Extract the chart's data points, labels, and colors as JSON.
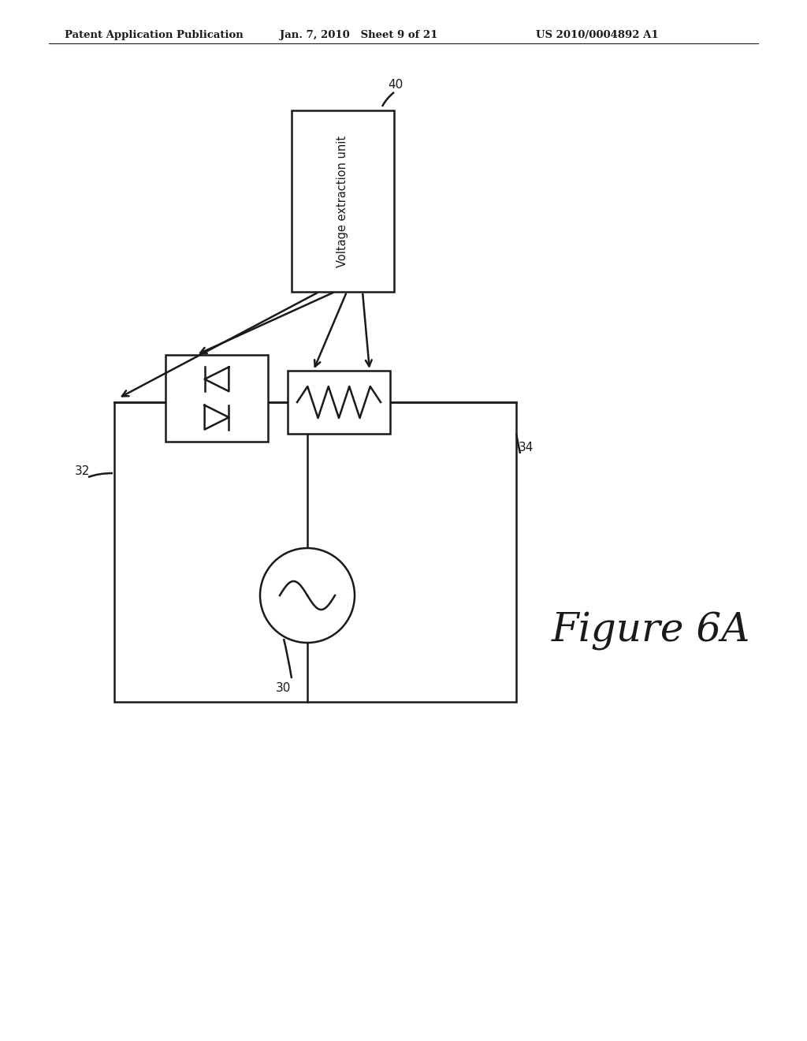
{
  "bg_color": "#ffffff",
  "line_color": "#1a1a1a",
  "header_left": "Patent Application Publication",
  "header_center": "Jan. 7, 2010   Sheet 9 of 21",
  "header_right": "US 2010/0004892 A1",
  "figure_label": "Figure 6A",
  "label_40": "40",
  "label_32": "32",
  "label_34": "34",
  "label_30": "30",
  "box_voltage_text": "Voltage extraction unit",
  "fig_width": 10.24,
  "fig_height": 13.2
}
